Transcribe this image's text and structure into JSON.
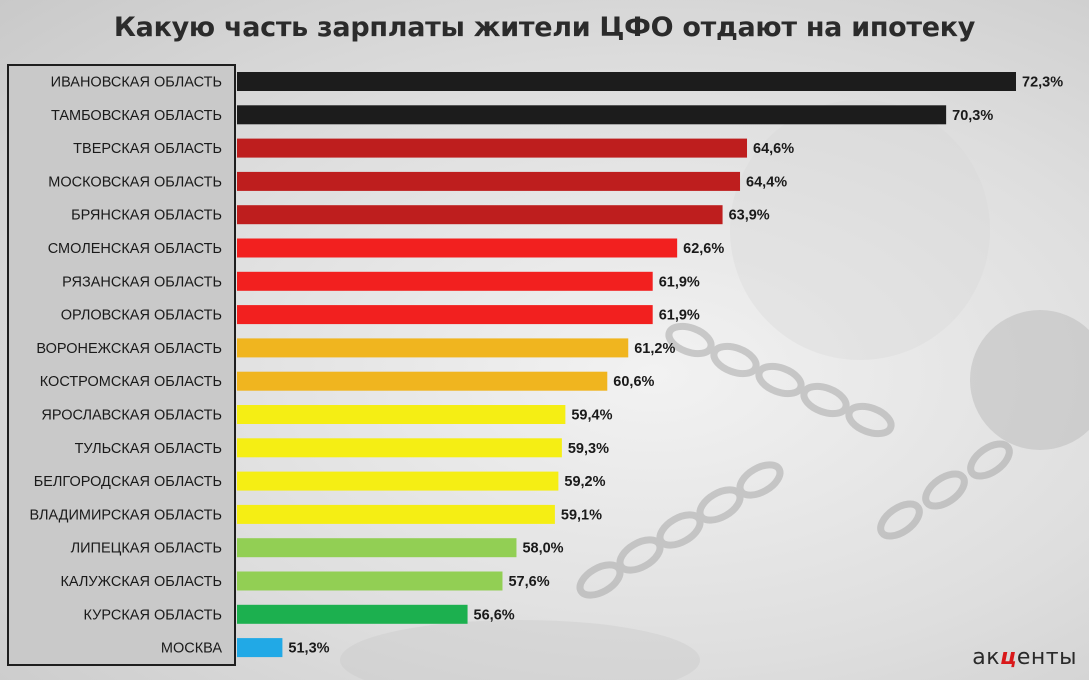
{
  "title": "Какую часть зарплаты жители ЦФО отдают на ипотеку",
  "logo": {
    "part1": "ак",
    "accent": "ц",
    "part2": "енты"
  },
  "chart_data": {
    "type": "bar",
    "orientation": "horizontal",
    "title": "Какую часть зарплаты жители ЦФО отдают на ипотеку",
    "xlabel": "",
    "ylabel": "",
    "unit": "%",
    "grid": false,
    "legend": "none",
    "xlim": [
      50,
      72.3
    ],
    "categories": [
      "ИВАНОВСКАЯ ОБЛАСТЬ",
      "ТАМБОВСКАЯ ОБЛАСТЬ",
      "ТВЕРСКАЯ ОБЛАСТЬ",
      "МОСКОВСКАЯ ОБЛАСТЬ",
      "БРЯНСКАЯ ОБЛАСТЬ",
      "СМОЛЕНСКАЯ ОБЛАСТЬ",
      "РЯЗАНСКАЯ ОБЛАСТЬ",
      "ОРЛОВСКАЯ ОБЛАСТЬ",
      "ВОРОНЕЖСКАЯ ОБЛАСТЬ",
      "КОСТРОМСКАЯ ОБЛАСТЬ",
      "ЯРОСЛАВСКАЯ ОБЛАСТЬ",
      "ТУЛЬСКАЯ ОБЛАСТЬ",
      "БЕЛГОРОДСКАЯ ОБЛАСТЬ",
      "ВЛАДИМИРСКАЯ ОБЛАСТЬ",
      "ЛИПЕЦКАЯ ОБЛАСТЬ",
      "КАЛУЖСКАЯ ОБЛАСТЬ",
      "КУРСКАЯ ОБЛАСТЬ",
      "МОСКВА"
    ],
    "values": [
      72.3,
      70.3,
      64.6,
      64.4,
      63.9,
      62.6,
      61.9,
      61.9,
      61.2,
      60.6,
      59.4,
      59.3,
      59.2,
      59.1,
      58.0,
      57.6,
      56.6,
      51.3
    ],
    "value_labels": [
      "72,3%",
      "70,3%",
      "64,6%",
      "64,4%",
      "63,9%",
      "62,6%",
      "61,9%",
      "61,9%",
      "61,2%",
      "60,6%",
      "59,4%",
      "59,3%",
      "59,2%",
      "59,1%",
      "58,0%",
      "57,6%",
      "56,6%",
      "51,3%"
    ],
    "colors": [
      "#1c1c1c",
      "#1c1c1c",
      "#be1e1e",
      "#be1e1e",
      "#be1e1e",
      "#f2201f",
      "#f2201f",
      "#f2201f",
      "#f0b51f",
      "#f0b51f",
      "#f5ee14",
      "#f5ee14",
      "#f5ee14",
      "#f5ee14",
      "#92cf54",
      "#92cf54",
      "#1cb04f",
      "#21a9e6"
    ]
  }
}
